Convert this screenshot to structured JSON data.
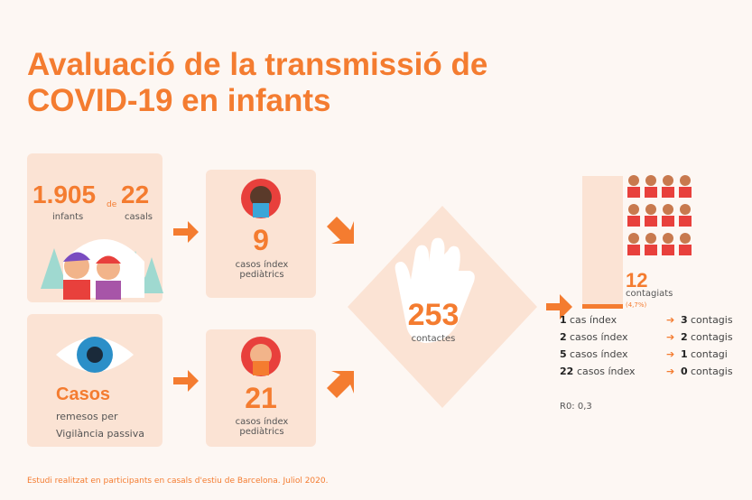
{
  "title": "Avaluació de la transmissió de COVID-19 en infants",
  "participants": {
    "infants_number": "1.905",
    "connector": "de",
    "casals_number": "22",
    "infants_label": "infants",
    "casals_label": "casals"
  },
  "index_top": {
    "number": "9",
    "label": "casos índex pediàtrics"
  },
  "passive": {
    "heading": "Casos",
    "text": "remesos per Vigilància passiva"
  },
  "index_bottom": {
    "number": "21",
    "label": "casos índex pediàtrics"
  },
  "contacts": {
    "number": "253",
    "label": "contactes"
  },
  "result": {
    "number": "12",
    "label": "contagiats",
    "percent": "(4,7%)"
  },
  "breakdown": [
    {
      "count": "1",
      "cases": "cas índex",
      "result_count": "3",
      "result_label": "contagis"
    },
    {
      "count": "2",
      "cases": "casos índex",
      "result_count": "2",
      "result_label": "contagis"
    },
    {
      "count": "5",
      "cases": "casos índex",
      "result_count": "1",
      "result_label": "contagi"
    },
    {
      "count": "22",
      "cases": "casos índex",
      "result_count": "0",
      "result_label": "contagis"
    }
  ],
  "r0": "R0: 0,3",
  "footer": "Estudi realitzat en participants en casals d'estiu de Barcelona. Juliol 2020."
}
